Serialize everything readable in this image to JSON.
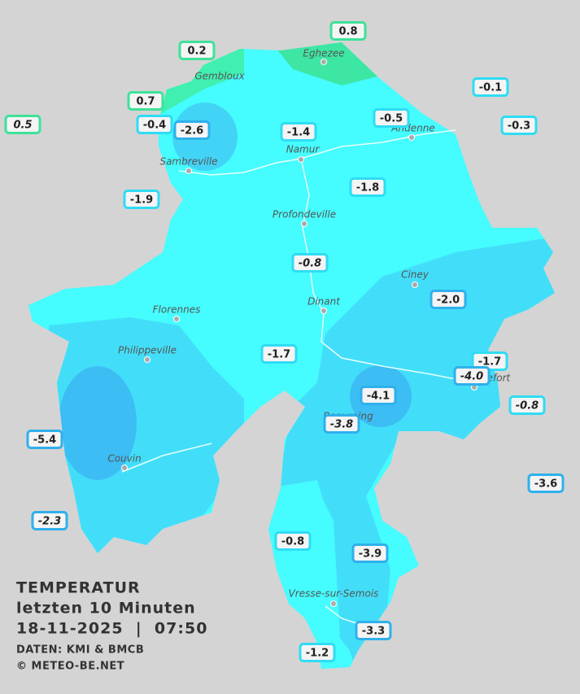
{
  "map": {
    "cities": [
      "Eghezee",
      "Gembloux",
      "Andenne",
      "Namur",
      "Sambreville",
      "Profondeville",
      "Ciney",
      "Dinant",
      "Florennes",
      "Philippeville",
      "Beauraing",
      "Rochefort",
      "Couvin",
      "Vresse-sur-Semois"
    ],
    "stations": [
      {
        "label": "0.8"
      },
      {
        "label": "0.2"
      },
      {
        "label": "0.7"
      },
      {
        "label": "0.5"
      },
      {
        "label": "-0.1"
      },
      {
        "label": "-0.4"
      },
      {
        "label": "-2.6"
      },
      {
        "label": "-1.4"
      },
      {
        "label": "-0.5"
      },
      {
        "label": "-0.3"
      },
      {
        "label": "-1.8"
      },
      {
        "label": "-1.9"
      },
      {
        "label": "-0.8"
      },
      {
        "label": "-2.0"
      },
      {
        "label": "-1.7"
      },
      {
        "label": "-1.7"
      },
      {
        "label": "-4.0"
      },
      {
        "label": "-4.1"
      },
      {
        "label": "-0.8"
      },
      {
        "label": "-3.8"
      },
      {
        "label": "-5.4"
      },
      {
        "label": "-3.6"
      },
      {
        "label": "-2.3"
      },
      {
        "label": "-0.8"
      },
      {
        "label": "-3.9"
      },
      {
        "label": "-3.3"
      },
      {
        "label": "-1.2"
      }
    ]
  },
  "info": {
    "title": "TEMPERATUR",
    "subtitle": "letzten 10 Minuten",
    "datetime": "18-11-2025  |  07:50",
    "source": "DATEN: KMI & BMCB",
    "copyright": "© METEO-BE.NET"
  }
}
